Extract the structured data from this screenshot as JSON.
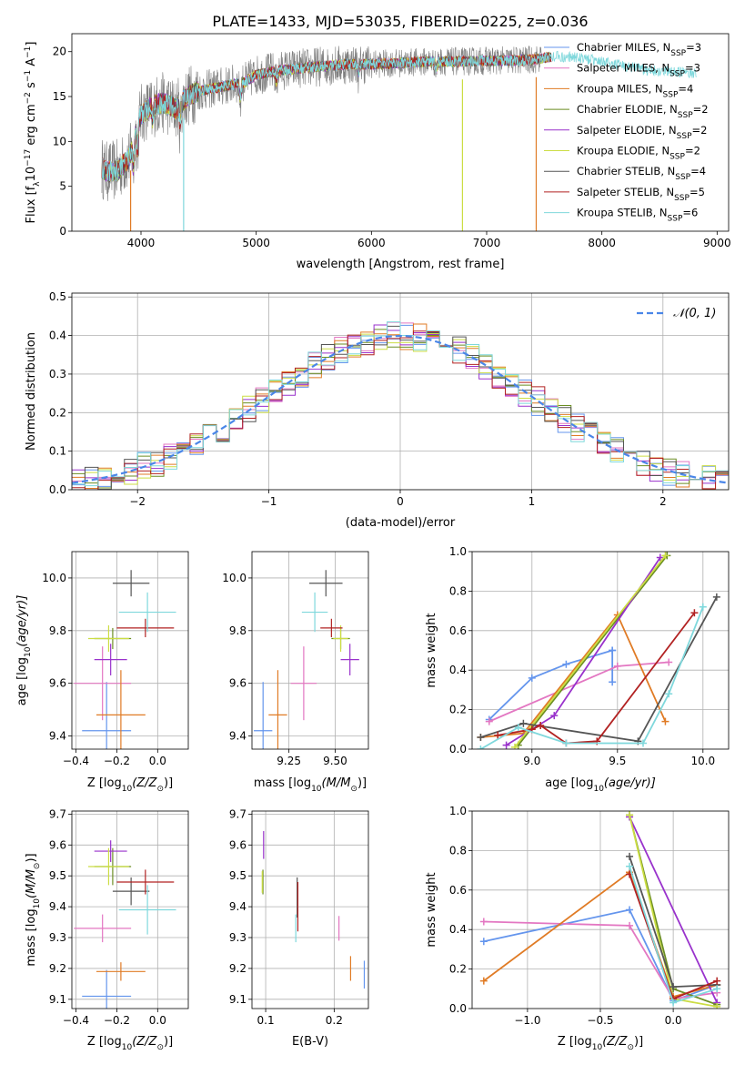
{
  "title": "PLATE=1433, MJD=53035, FIBERID=0225, z=0.036",
  "colors": {
    "c0": "#6495ed",
    "c1": "#e377c2",
    "c2": "#e07b25",
    "c3": "#6b8e23",
    "c4": "#9932cc",
    "c5": "#ccdd44",
    "c6": "#555555",
    "c7": "#b22222",
    "c8": "#7fd8dc"
  },
  "chart_data": [
    {
      "id": "spectrum",
      "type": "line",
      "xlabel": "wavelength [Angstrom, rest frame]",
      "ylabel_parts": [
        "Flux [f",
        "λ",
        "10",
        "−17",
        " erg cm",
        "−2",
        " s",
        "−1",
        " A",
        "−1",
        "]"
      ],
      "xlim": [
        3400,
        9100
      ],
      "ylim": [
        0,
        22
      ],
      "xticks": [
        4000,
        5000,
        6000,
        7000,
        8000,
        9000
      ],
      "yticks": [
        0,
        5,
        10,
        15,
        20
      ],
      "grid": false,
      "legend": "right",
      "continuum": {
        "x": [
          3650,
          3700,
          3800,
          3900,
          3950,
          4000,
          4100,
          4200,
          4300,
          4400,
          4500,
          4700,
          4900,
          5000,
          5200,
          5500,
          5800,
          6000,
          6200,
          6500,
          6800,
          7000,
          7200,
          7400,
          7600,
          7800,
          8000,
          8200,
          8400,
          8600,
          8800
        ],
        "y": [
          7.2,
          6.6,
          6.8,
          8.2,
          11.0,
          13.0,
          14.0,
          14.3,
          13.6,
          15.0,
          15.6,
          16.1,
          16.6,
          17.4,
          17.9,
          18.3,
          18.6,
          18.6,
          18.7,
          18.9,
          18.9,
          19.0,
          19.0,
          19.1,
          19.5,
          19.3,
          18.9,
          18.4,
          17.9,
          17.8,
          17.6
        ]
      },
      "series": [
        {
          "name": "Chabrier MILES, N",
          "sub": "SSP",
          "tail": "=3",
          "color": "#6495ed"
        },
        {
          "name": "Salpeter MILES, N",
          "sub": "SSP",
          "tail": "=3",
          "color": "#e377c2"
        },
        {
          "name": "Kroupa MILES, N",
          "sub": "SSP",
          "tail": "=4",
          "color": "#e07b25"
        },
        {
          "name": "Chabrier ELODIE, N",
          "sub": "SSP",
          "tail": "=2",
          "color": "#6b8e23"
        },
        {
          "name": "Salpeter ELODIE, N",
          "sub": "SSP",
          "tail": "=2",
          "color": "#9932cc"
        },
        {
          "name": "Kroupa ELODIE, N",
          "sub": "SSP",
          "tail": "=2",
          "color": "#ccdd44"
        },
        {
          "name": "Chabrier STELIB, N",
          "sub": "SSP",
          "tail": "=4",
          "color": "#555555"
        },
        {
          "name": "Salpeter STELIB, N",
          "sub": "SSP",
          "tail": "=5",
          "color": "#b22222"
        },
        {
          "name": "Kroupa STELIB, N",
          "sub": "SSP",
          "tail": "=6",
          "color": "#7fd8dc"
        }
      ]
    },
    {
      "id": "residuals",
      "type": "line",
      "xlabel": "(data-model)/error",
      "ylabel": "Normed distribution",
      "xlim": [
        -2.5,
        2.5
      ],
      "ylim": [
        0,
        0.51
      ],
      "xticks": [
        -2,
        -1,
        0,
        1,
        2
      ],
      "yticks": [
        0.0,
        0.1,
        0.2,
        0.3,
        0.4,
        0.5
      ],
      "grid": true,
      "legend": "top-right",
      "legend_label": "𝒩(0, 1)",
      "gaussian": {
        "mean": 0,
        "sigma": 1
      }
    },
    {
      "id": "age-vs-Z",
      "type": "scatter",
      "xlabel_parts": [
        "Z [log",
        "10",
        "(Z/Z",
        "⊙",
        ")]"
      ],
      "ylabel_parts": [
        "age  [log",
        "10",
        "(age/yr)]"
      ],
      "xlim": [
        -0.42,
        0.15
      ],
      "ylim": [
        9.35,
        10.1
      ],
      "xticks": [
        -0.4,
        -0.2,
        0.0
      ],
      "yticks": [
        9.4,
        9.6,
        9.8,
        10.0
      ],
      "grid": true,
      "points": [
        {
          "x": -0.25,
          "y": 9.42,
          "xerr": 0.12,
          "yerr": 0.37,
          "color": "#6495ed"
        },
        {
          "x": -0.27,
          "y": 9.6,
          "xerr": 0.14,
          "yerr": 0.28,
          "color": "#e377c2"
        },
        {
          "x": -0.18,
          "y": 9.48,
          "xerr": 0.12,
          "yerr": 0.34,
          "color": "#e07b25"
        },
        {
          "x": -0.22,
          "y": 9.77,
          "xerr": 0.09,
          "yerr": 0.08,
          "color": "#6b8e23"
        },
        {
          "x": -0.23,
          "y": 9.69,
          "xerr": 0.08,
          "yerr": 0.12,
          "color": "#9932cc"
        },
        {
          "x": -0.24,
          "y": 9.77,
          "xerr": 0.1,
          "yerr": 0.1,
          "color": "#ccdd44"
        },
        {
          "x": -0.13,
          "y": 9.98,
          "xerr": 0.09,
          "yerr": 0.1,
          "color": "#555555"
        },
        {
          "x": -0.06,
          "y": 9.81,
          "xerr": 0.14,
          "yerr": 0.07,
          "color": "#b22222"
        },
        {
          "x": -0.05,
          "y": 9.87,
          "xerr": 0.14,
          "yerr": 0.15,
          "color": "#7fd8dc"
        }
      ]
    },
    {
      "id": "age-vs-mass",
      "type": "scatter",
      "xlabel_parts": [
        "mass [log",
        "10",
        "(M/M",
        "⊙",
        ")]"
      ],
      "xlim": [
        9.05,
        9.68
      ],
      "ylim": [
        9.35,
        10.1
      ],
      "xticks": [
        9.25,
        9.5
      ],
      "xtick_labels": [
        "9.25",
        "9.50"
      ],
      "yticks": [
        9.4,
        9.6,
        9.8,
        10.0
      ],
      "grid": true,
      "points": [
        {
          "x": 9.11,
          "y": 9.42,
          "xerr": 0.05,
          "yerr": 0.37,
          "color": "#6495ed"
        },
        {
          "x": 9.33,
          "y": 9.6,
          "xerr": 0.07,
          "yerr": 0.28,
          "color": "#e377c2"
        },
        {
          "x": 9.19,
          "y": 9.48,
          "xerr": 0.05,
          "yerr": 0.34,
          "color": "#e07b25"
        },
        {
          "x": 9.53,
          "y": 9.77,
          "xerr": 0.05,
          "yerr": 0.08,
          "color": "#6b8e23"
        },
        {
          "x": 9.58,
          "y": 9.69,
          "xerr": 0.05,
          "yerr": 0.12,
          "color": "#9932cc"
        },
        {
          "x": 9.53,
          "y": 9.77,
          "xerr": 0.04,
          "yerr": 0.1,
          "color": "#ccdd44"
        },
        {
          "x": 9.45,
          "y": 9.98,
          "xerr": 0.09,
          "yerr": 0.1,
          "color": "#555555"
        },
        {
          "x": 9.48,
          "y": 9.81,
          "xerr": 0.06,
          "yerr": 0.07,
          "color": "#b22222"
        },
        {
          "x": 9.39,
          "y": 9.87,
          "xerr": 0.07,
          "yerr": 0.15,
          "color": "#7fd8dc"
        }
      ]
    },
    {
      "id": "mass-weight-vs-age",
      "type": "line",
      "xlabel_parts": [
        "age  [log",
        "10",
        "(age/yr)]"
      ],
      "ylabel": "mass weight",
      "xlim": [
        8.65,
        10.15
      ],
      "ylim": [
        0,
        1
      ],
      "xticks": [
        9.0,
        9.5,
        10.0
      ],
      "yticks": [
        0.0,
        0.2,
        0.4,
        0.6,
        0.8,
        1.0
      ],
      "grid": true,
      "series": [
        {
          "color": "#6495ed",
          "x": [
            8.75,
            9.0,
            9.2,
            9.47
          ],
          "y": [
            0.15,
            0.36,
            0.43,
            0.5
          ]
        },
        {
          "color": "#6495ed",
          "x": [
            9.47,
            9.47
          ],
          "y": [
            0.5,
            0.34
          ]
        },
        {
          "color": "#e377c2",
          "x": [
            8.75,
            9.5,
            9.8
          ],
          "y": [
            0.14,
            0.42,
            0.44
          ]
        },
        {
          "color": "#e07b25",
          "x": [
            8.7,
            8.95,
            9.5,
            9.78
          ],
          "y": [
            0.06,
            0.08,
            0.68,
            0.14
          ]
        },
        {
          "color": "#6b8e23",
          "x": [
            8.92,
            9.79
          ],
          "y": [
            0.02,
            0.98
          ]
        },
        {
          "color": "#9932cc",
          "x": [
            8.85,
            9.13,
            9.75
          ],
          "y": [
            0.02,
            0.17,
            0.97
          ]
        },
        {
          "color": "#ccdd44",
          "x": [
            8.9,
            9.78
          ],
          "y": [
            0.01,
            0.98
          ]
        },
        {
          "color": "#555555",
          "x": [
            8.7,
            8.95,
            9.62,
            10.08
          ],
          "y": [
            0.06,
            0.13,
            0.04,
            0.77
          ]
        },
        {
          "color": "#b22222",
          "x": [
            8.8,
            9.0,
            9.05,
            9.2,
            9.38,
            9.95
          ],
          "y": [
            0.07,
            0.1,
            0.12,
            0.03,
            0.04,
            0.69
          ]
        },
        {
          "color": "#7fd8dc",
          "x": [
            8.7,
            8.92,
            9.2,
            9.65,
            9.8,
            10.0
          ],
          "y": [
            0.0,
            0.11,
            0.03,
            0.03,
            0.28,
            0.72
          ]
        }
      ]
    },
    {
      "id": "mass-vs-Z",
      "type": "scatter",
      "xlabel_parts": [
        "Z [log",
        "10",
        "(Z/Z",
        "⊙",
        ")]"
      ],
      "ylabel_parts": [
        "mass [log",
        "10",
        "(M/M",
        "⊙",
        ")]"
      ],
      "xlim": [
        -0.42,
        0.15
      ],
      "ylim": [
        9.07,
        9.71
      ],
      "xticks": [
        -0.4,
        -0.2,
        0.0
      ],
      "yticks": [
        9.1,
        9.2,
        9.3,
        9.4,
        9.5,
        9.6,
        9.7
      ],
      "grid": true,
      "points": [
        {
          "x": -0.25,
          "y": 9.11,
          "xerr": 0.12,
          "yerr": 0.17,
          "color": "#6495ed"
        },
        {
          "x": -0.27,
          "y": 9.33,
          "xerr": 0.14,
          "yerr": 0.09,
          "color": "#e377c2"
        },
        {
          "x": -0.18,
          "y": 9.19,
          "xerr": 0.12,
          "yerr": 0.06,
          "color": "#e07b25"
        },
        {
          "x": -0.22,
          "y": 9.53,
          "xerr": 0.09,
          "yerr": 0.12,
          "color": "#6b8e23"
        },
        {
          "x": -0.23,
          "y": 9.58,
          "xerr": 0.08,
          "yerr": 0.07,
          "color": "#9932cc"
        },
        {
          "x": -0.24,
          "y": 9.53,
          "xerr": 0.1,
          "yerr": 0.12,
          "color": "#ccdd44"
        },
        {
          "x": -0.13,
          "y": 9.45,
          "xerr": 0.09,
          "yerr": 0.09,
          "color": "#555555"
        },
        {
          "x": -0.06,
          "y": 9.48,
          "xerr": 0.14,
          "yerr": 0.08,
          "color": "#b22222"
        },
        {
          "x": -0.05,
          "y": 9.39,
          "xerr": 0.14,
          "yerr": 0.16,
          "color": "#7fd8dc"
        }
      ]
    },
    {
      "id": "mass-vs-EBV",
      "type": "scatter",
      "xlabel": "E(B-V)",
      "xlim": [
        0.08,
        0.25
      ],
      "ylim": [
        9.07,
        9.71
      ],
      "xticks": [
        0.1,
        0.2
      ],
      "yticks": [
        9.1,
        9.2,
        9.3,
        9.4,
        9.5,
        9.6,
        9.7
      ],
      "grid": true,
      "points": [
        {
          "x": 0.244,
          "y": 9.18,
          "xerr": 0,
          "yerr": 0.09,
          "color": "#6495ed"
        },
        {
          "x": 0.207,
          "y": 9.33,
          "xerr": 0,
          "yerr": 0.08,
          "color": "#e377c2"
        },
        {
          "x": 0.224,
          "y": 9.2,
          "xerr": 0,
          "yerr": 0.08,
          "color": "#e07b25"
        },
        {
          "x": 0.096,
          "y": 9.48,
          "xerr": 0,
          "yerr": 0.08,
          "color": "#6b8e23"
        },
        {
          "x": 0.097,
          "y": 9.6,
          "xerr": 0,
          "yerr": 0.09,
          "color": "#9932cc"
        },
        {
          "x": 0.095,
          "y": 9.48,
          "xerr": 0,
          "yerr": 0.07,
          "color": "#ccdd44"
        },
        {
          "x": 0.146,
          "y": 9.43,
          "xerr": 0,
          "yerr": 0.13,
          "color": "#555555"
        },
        {
          "x": 0.147,
          "y": 9.4,
          "xerr": 0,
          "yerr": 0.16,
          "color": "#b22222"
        },
        {
          "x": 0.144,
          "y": 9.33,
          "xerr": 0,
          "yerr": 0.09,
          "color": "#7fd8dc"
        }
      ]
    },
    {
      "id": "mass-weight-vs-Z",
      "type": "line",
      "xlabel_parts": [
        "Z [log",
        "10",
        "(Z/Z",
        "⊙",
        ")]"
      ],
      "ylabel": "mass weight",
      "xlim": [
        -1.38,
        0.38
      ],
      "ylim": [
        0,
        1
      ],
      "xticks": [
        -1.0,
        -0.5,
        0.0
      ],
      "yticks": [
        0.0,
        0.2,
        0.4,
        0.6,
        0.8,
        1.0
      ],
      "grid": true,
      "series": [
        {
          "color": "#6495ed",
          "x": [
            -1.3,
            -0.3,
            0.0,
            0.3
          ],
          "y": [
            0.34,
            0.5,
            0.04,
            0.12
          ]
        },
        {
          "color": "#e377c2",
          "x": [
            -1.3,
            -0.3,
            0.0,
            0.3
          ],
          "y": [
            0.44,
            0.42,
            0.05,
            0.08
          ]
        },
        {
          "color": "#e07b25",
          "x": [
            -1.3,
            -0.3,
            0.0,
            0.3
          ],
          "y": [
            0.14,
            0.69,
            0.06,
            0.12
          ]
        },
        {
          "color": "#6b8e23",
          "x": [
            -0.3,
            0.0,
            0.3
          ],
          "y": [
            0.98,
            0.1,
            0.02
          ]
        },
        {
          "color": "#9932cc",
          "x": [
            -0.3,
            0.3
          ],
          "y": [
            0.97,
            0.03
          ]
        },
        {
          "color": "#ccdd44",
          "x": [
            -0.3,
            0.0,
            0.3
          ],
          "y": [
            0.98,
            0.05,
            0.01
          ]
        },
        {
          "color": "#555555",
          "x": [
            -0.3,
            0.0,
            0.3
          ],
          "y": [
            0.77,
            0.11,
            0.12
          ]
        },
        {
          "color": "#b22222",
          "x": [
            -0.3,
            0.0,
            0.3
          ],
          "y": [
            0.68,
            0.05,
            0.14
          ]
        },
        {
          "color": "#7fd8dc",
          "x": [
            -0.3,
            0.0,
            0.3
          ],
          "y": [
            0.72,
            0.03,
            0.1
          ]
        }
      ]
    }
  ]
}
